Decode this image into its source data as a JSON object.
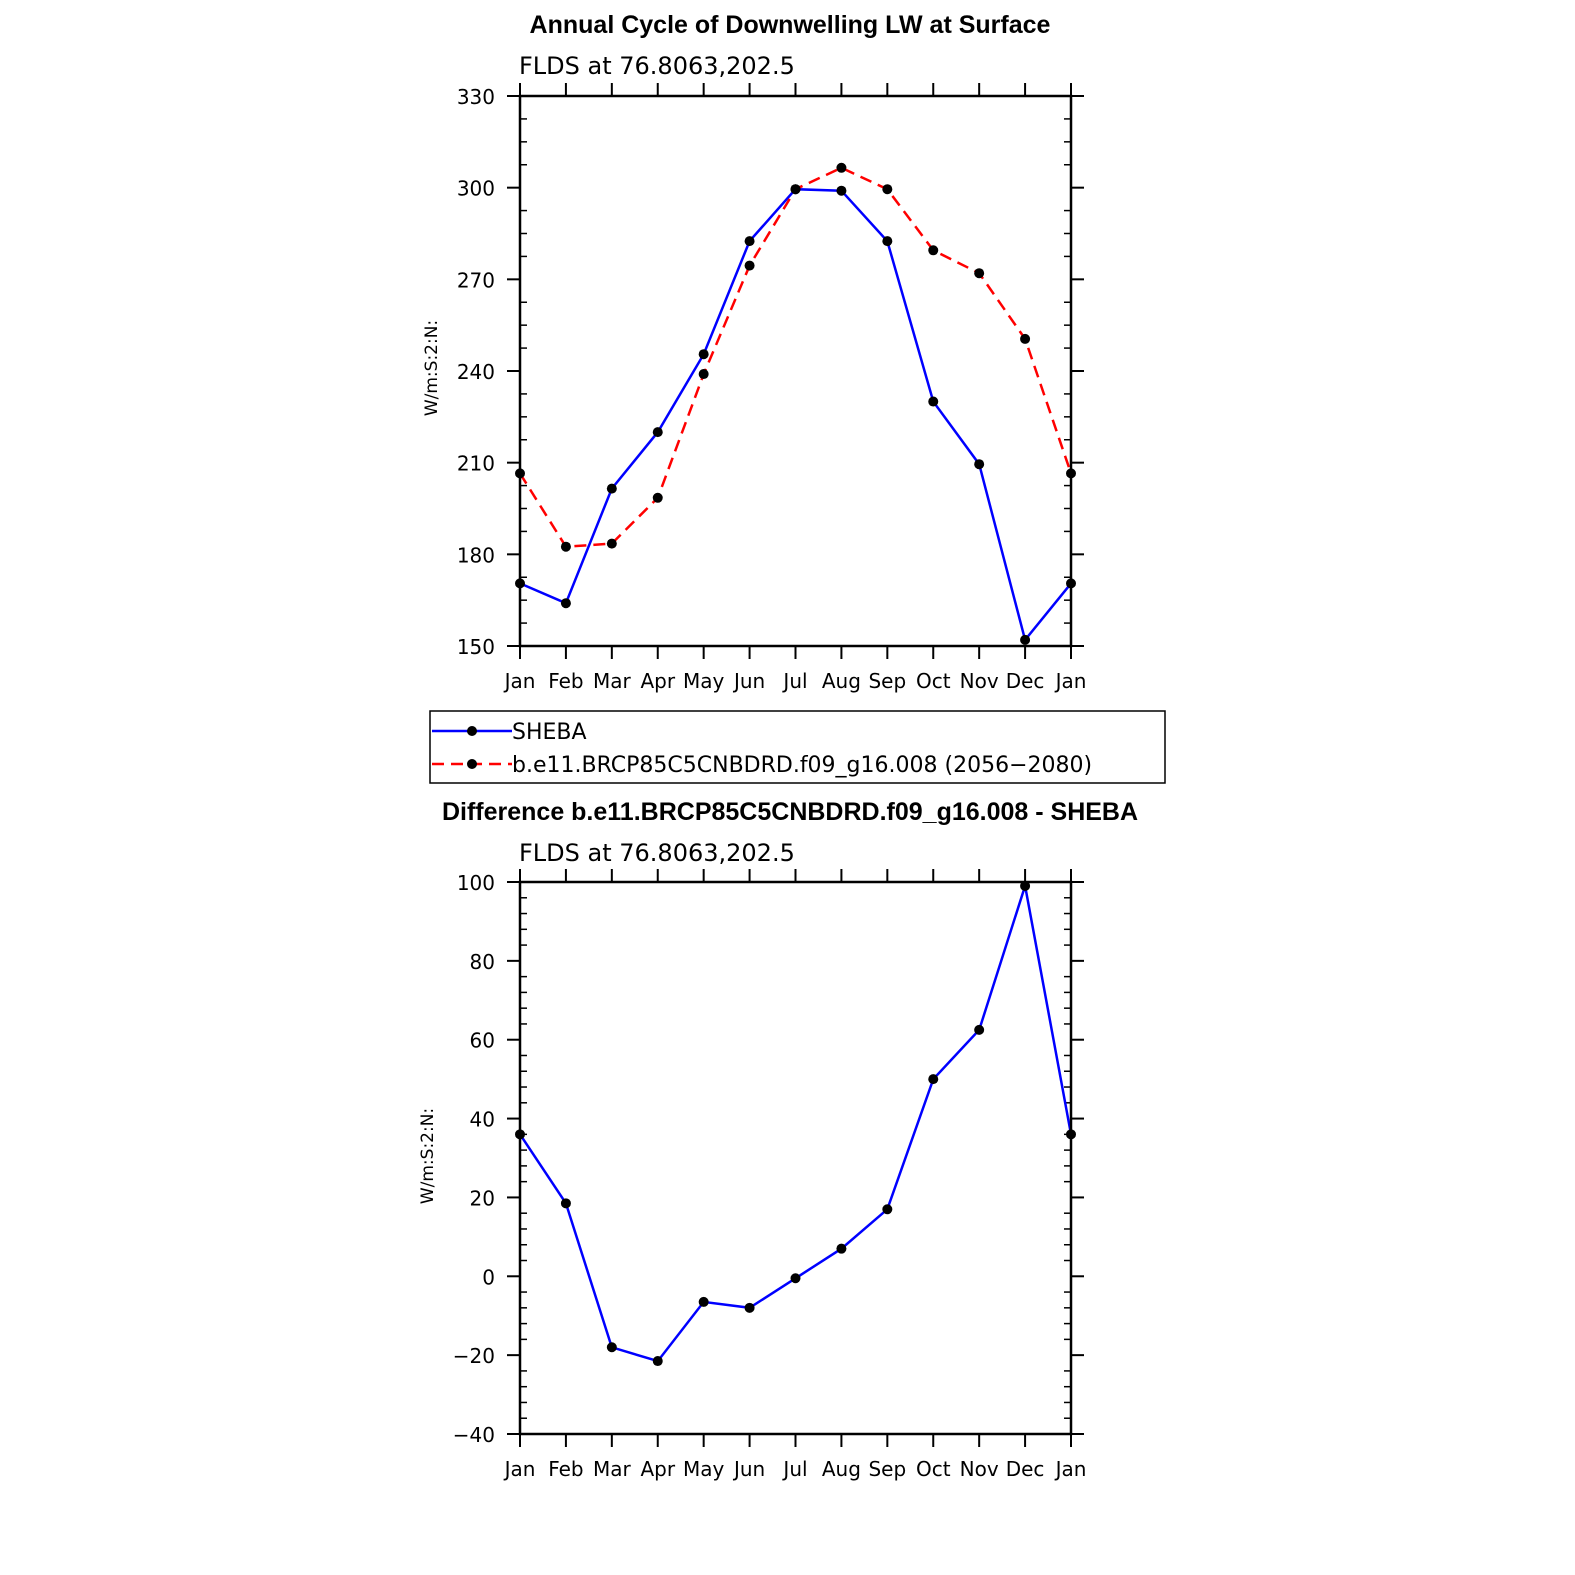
{
  "chart_data": [
    {
      "type": "line",
      "title": "Annual Cycle of Downwelling LW at Surface",
      "subtitle": "FLDS at 76.8063,202.5",
      "ylabel": "W/m:S:2:N:",
      "xlabel": "",
      "categories": [
        "Jan",
        "Feb",
        "Mar",
        "Apr",
        "May",
        "Jun",
        "Jul",
        "Aug",
        "Sep",
        "Oct",
        "Nov",
        "Dec",
        "Jan"
      ],
      "ylim": [
        150,
        330
      ],
      "yticks": [
        "150",
        "180",
        "210",
        "240",
        "270",
        "300",
        "330"
      ],
      "series": [
        {
          "name": "SHEBA",
          "color": "#0000ff",
          "dash": "solid",
          "values": [
            170.5,
            164,
            201.5,
            220,
            245.5,
            282.5,
            299.5,
            299,
            282.5,
            230,
            209.5,
            152,
            170.5
          ]
        },
        {
          "name": "b.e11.BRCP85C5CNBDRD.f09_g16.008 (2056−2080)",
          "color": "#ff0000",
          "dash": "dashed",
          "values": [
            206.5,
            182.5,
            183.5,
            198.5,
            239,
            274.5,
            299.5,
            306.5,
            299.5,
            279.5,
            272,
            250.5,
            206.5
          ]
        }
      ],
      "legend": "below"
    },
    {
      "type": "line",
      "title": "Difference b.e11.BRCP85C5CNBDRD.f09_g16.008 - SHEBA",
      "subtitle": "FLDS at 76.8063,202.5",
      "ylabel": "W/m:S:2:N:",
      "xlabel": "",
      "categories": [
        "Jan",
        "Feb",
        "Mar",
        "Apr",
        "May",
        "Jun",
        "Jul",
        "Aug",
        "Sep",
        "Oct",
        "Nov",
        "Dec",
        "Jan"
      ],
      "ylim": [
        -40,
        100
      ],
      "yticks": [
        "−40",
        "−20",
        "0",
        "20",
        "40",
        "60",
        "80",
        "100"
      ],
      "series": [
        {
          "color": "#0000ff",
          "dash": "solid",
          "values": [
            36,
            18.5,
            -18,
            -21.5,
            -6.5,
            -8,
            -0.5,
            7,
            17,
            50,
            62.5,
            99,
            36
          ]
        }
      ]
    }
  ]
}
